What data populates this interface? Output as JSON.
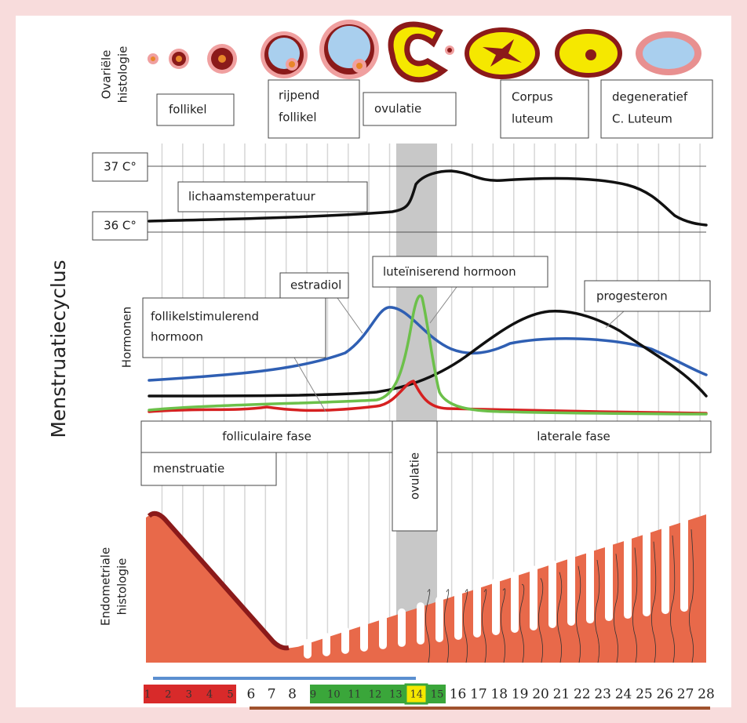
{
  "title": "Menstruatiecyclus",
  "ovary": {
    "axis_label": [
      "Ovariële",
      "histologie"
    ],
    "stages": [
      [
        "follikel"
      ],
      [
        "rijpend",
        "follikel"
      ],
      [
        "ovulatie"
      ],
      [
        "Corpus",
        "luteum"
      ],
      [
        "degeneratief",
        "C. Luteum"
      ]
    ]
  },
  "temperature": {
    "high": "37 C°",
    "low": "36 C°",
    "label": "lichaamstemperatuur"
  },
  "hormones": {
    "axis_label": "Hormonen",
    "estradiol": "estradiol",
    "lh": "luteïniserend hormoon",
    "progesterone": "progesteron",
    "fsh": [
      "follikelstimulerend",
      "hormoon"
    ]
  },
  "phases": {
    "follicular": "folliculaire fase",
    "luteal": "laterale fase",
    "menstruation": "menstruatie",
    "ovulation": "ovulatie"
  },
  "endometrium": {
    "axis_label": [
      "Endometriale",
      "histologie"
    ]
  },
  "days": [
    1,
    2,
    3,
    4,
    5,
    6,
    7,
    8,
    9,
    10,
    11,
    12,
    13,
    14,
    15,
    16,
    17,
    18,
    19,
    20,
    21,
    22,
    23,
    24,
    25,
    26,
    27,
    28
  ]
}
